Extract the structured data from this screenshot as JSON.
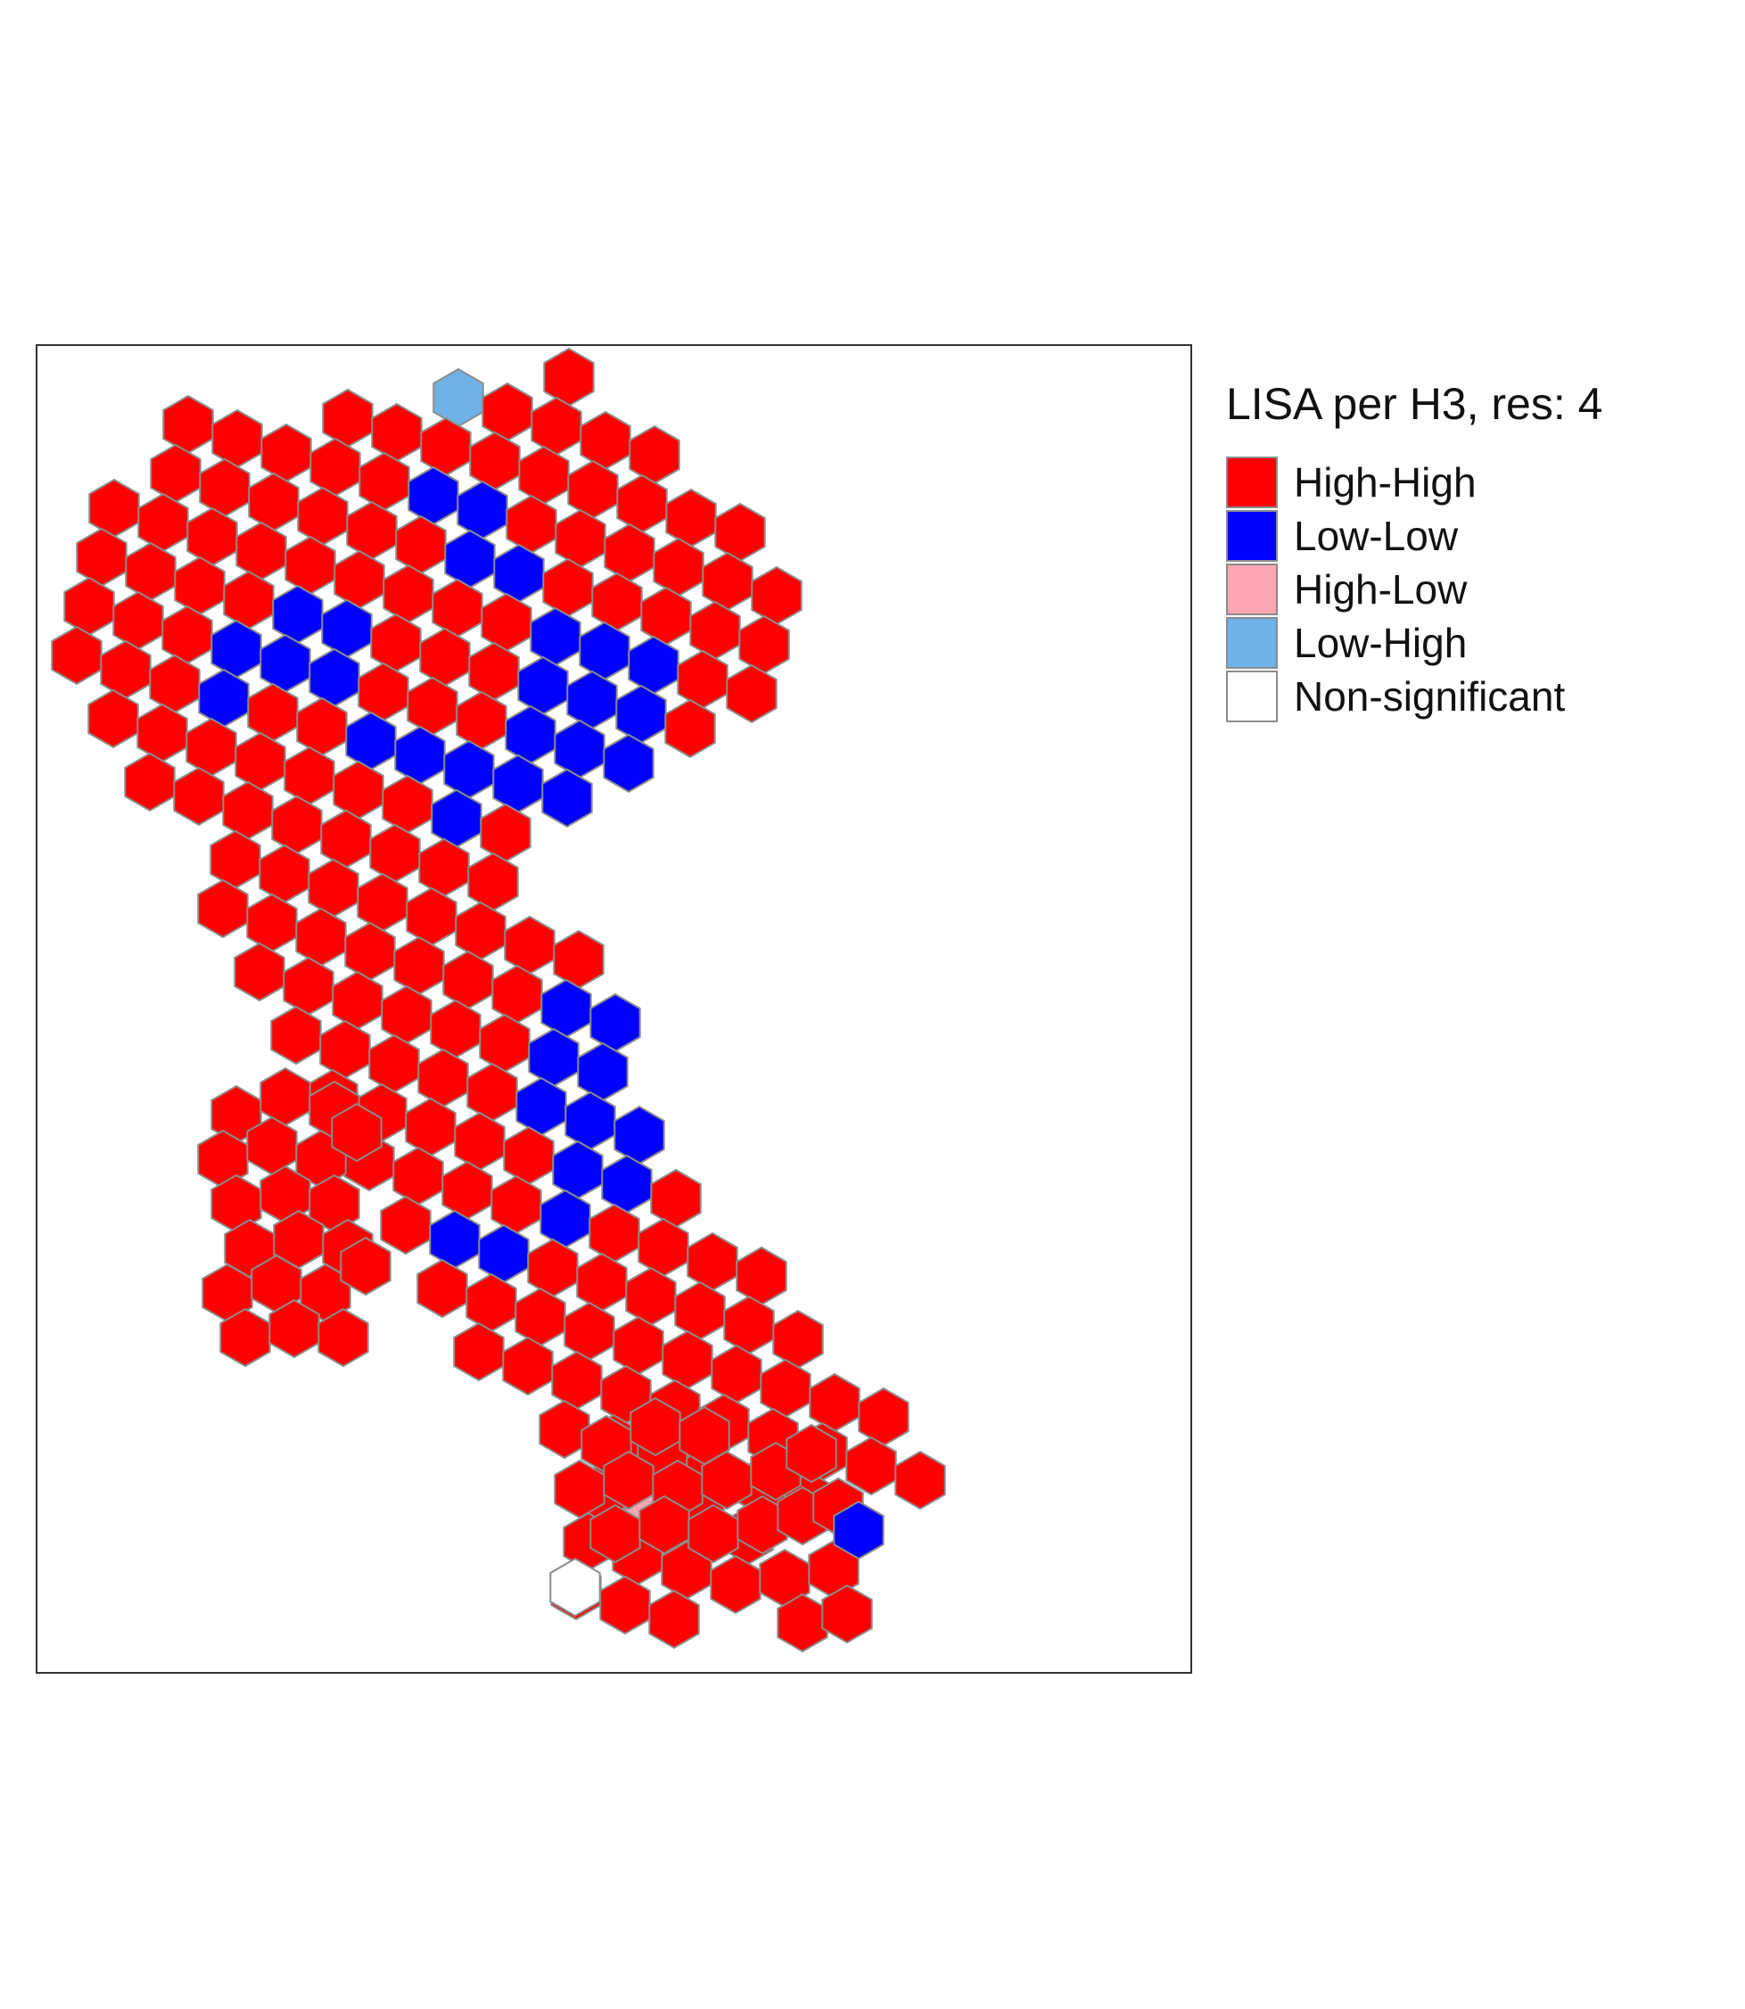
{
  "legend": {
    "title": "LISA per H3, res:  4",
    "items": [
      {
        "key": "hh",
        "label": "High-High",
        "color": "#ff0000"
      },
      {
        "key": "ll",
        "label": "Low-Low",
        "color": "#0000ff"
      },
      {
        "key": "hl",
        "label": "High-Low",
        "color": "#ffa6b4"
      },
      {
        "key": "lh",
        "label": "Low-High",
        "color": "#6fb2e8"
      },
      {
        "key": "ns",
        "label": "Non-significant",
        "color": "#ffffff"
      }
    ]
  },
  "colors": {
    "hex_border": "#8c8c8c",
    "frame": "#333333",
    "background": "#ffffff"
  }
}
